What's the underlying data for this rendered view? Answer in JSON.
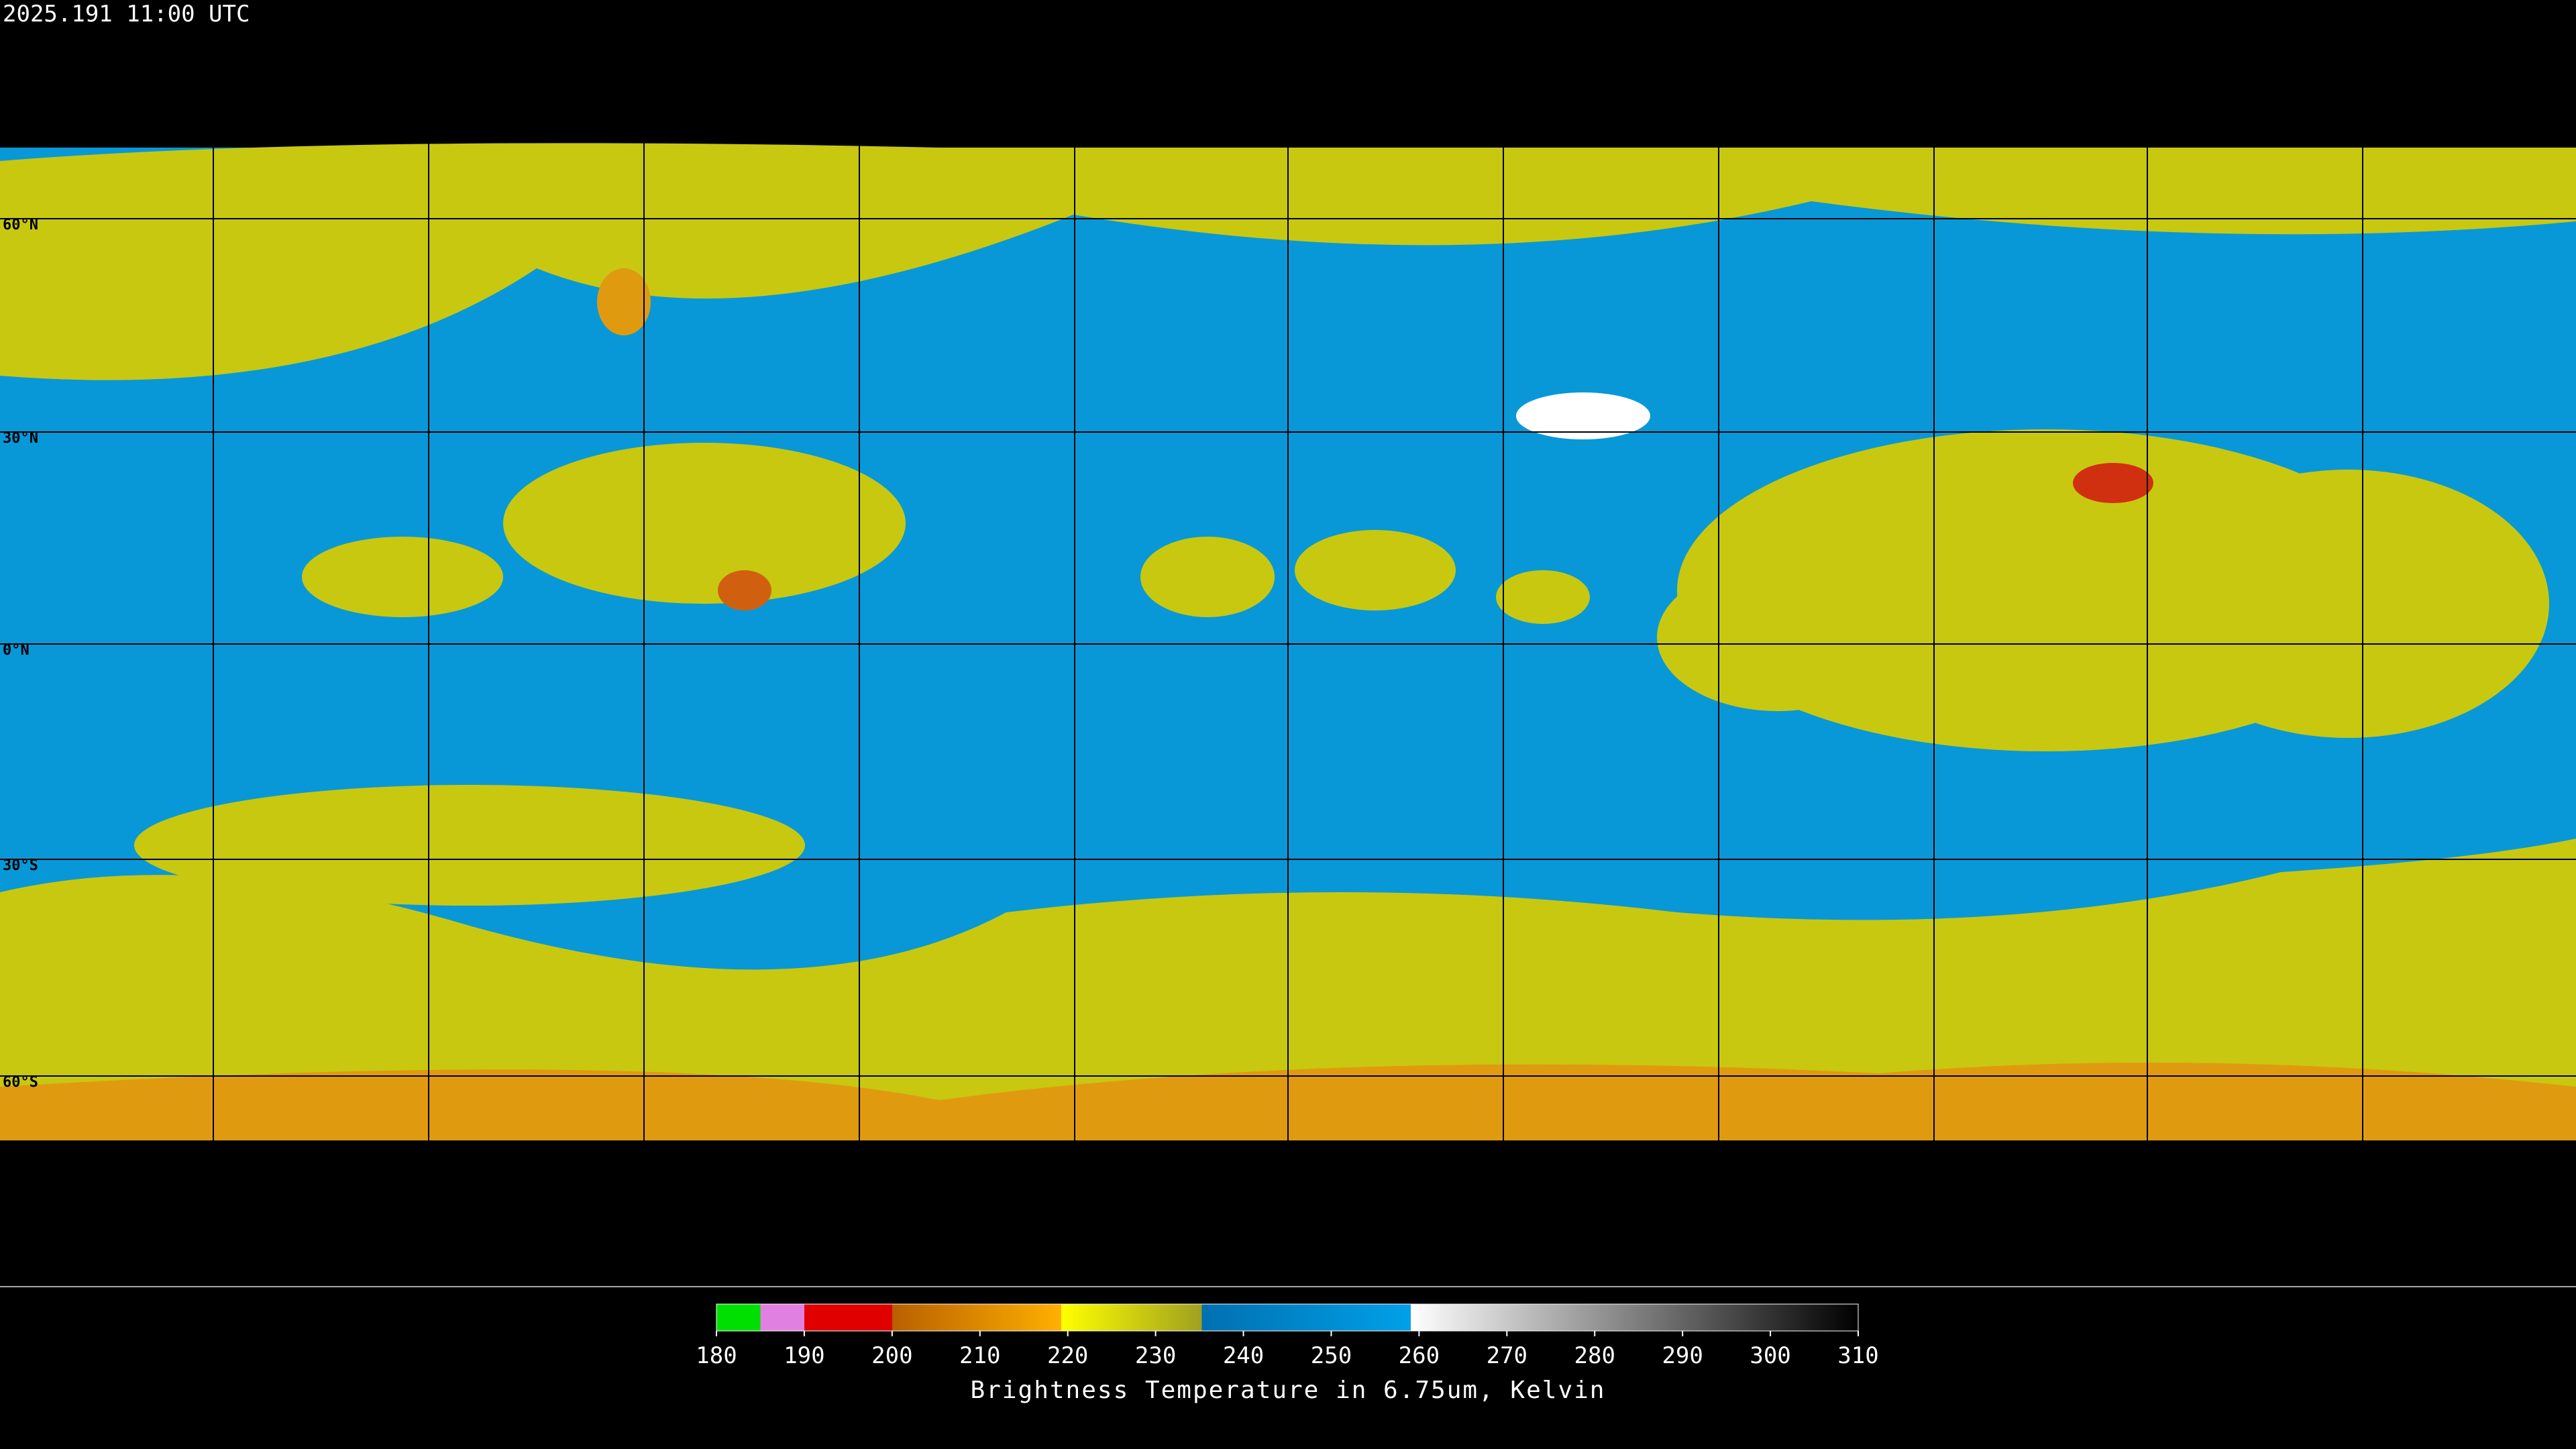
{
  "timestamp": "2025.191 11:00 UTC",
  "latitude_labels": [
    "60°N",
    "30°N",
    "0°N",
    "30°S",
    "60°S"
  ],
  "colorbar": {
    "lim": [
      180,
      310
    ],
    "ticks": [
      180,
      190,
      200,
      210,
      220,
      230,
      240,
      250,
      260,
      270,
      280,
      290,
      300,
      310
    ],
    "label": "Brightness Temperature in 6.75um, Kelvin"
  }
}
